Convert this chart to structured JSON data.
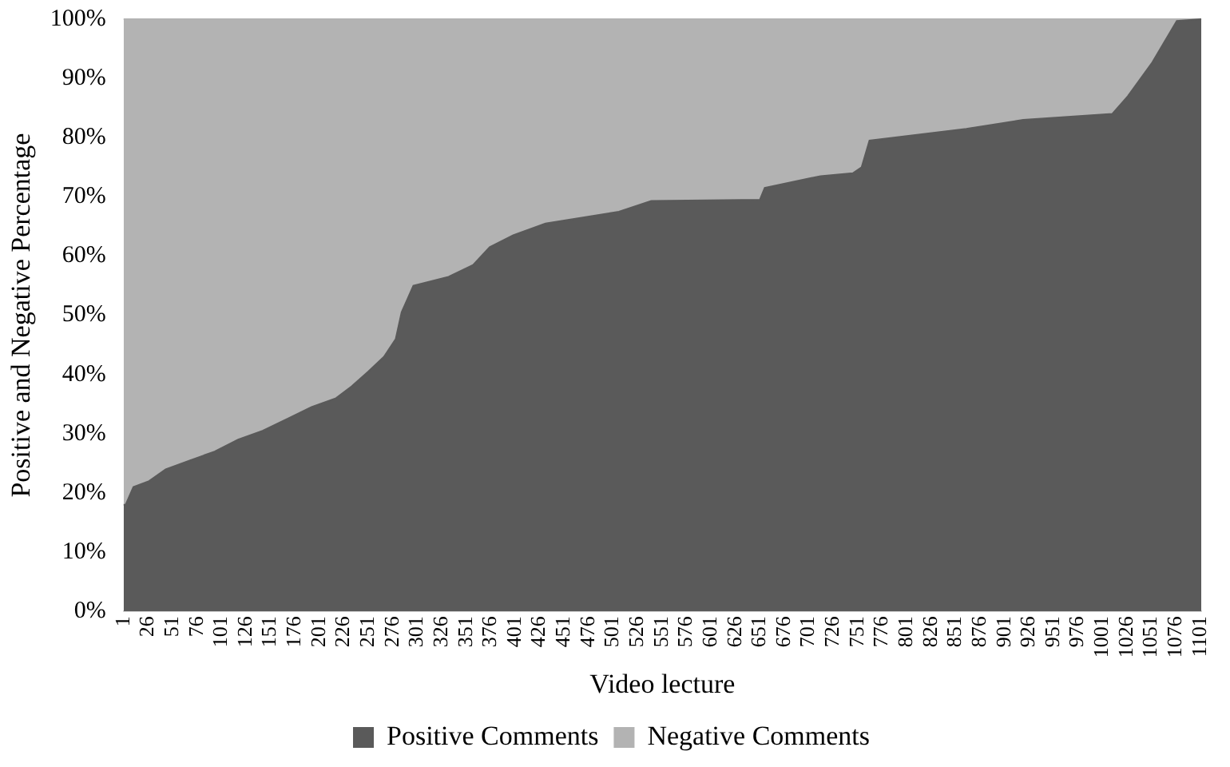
{
  "chart_data": {
    "type": "area",
    "stacked": true,
    "xlabel": "Video lecture",
    "ylabel": "Positive and Negative Percentage",
    "x": [
      1,
      3,
      11,
      27,
      44,
      69,
      94,
      118,
      143,
      168,
      193,
      218,
      234,
      251,
      267,
      279,
      285,
      297,
      333,
      358,
      375,
      399,
      432,
      507,
      540,
      651,
      656,
      713,
      746,
      755,
      763,
      862,
      920,
      1011,
      1027,
      1052,
      1077,
      1102
    ],
    "series": [
      {
        "name": "Positive Comments",
        "color": "#5a5a5a",
        "values": [
          18,
          18,
          21,
          22,
          24,
          25.5,
          27,
          29,
          30.5,
          32.5,
          34.5,
          36,
          38,
          40.5,
          43,
          46,
          50.5,
          55,
          56.5,
          58.5,
          61.5,
          63.5,
          65.5,
          67.5,
          69.3,
          69.5,
          71.5,
          73.5,
          74,
          75,
          79.5,
          81.5,
          83,
          84,
          87,
          92.7,
          99.7,
          100
        ]
      },
      {
        "name": "Negative Comments",
        "color": "#b3b3b3",
        "values": [
          82,
          82,
          79,
          78,
          76,
          74.5,
          73,
          71,
          69.5,
          67.5,
          65.5,
          64,
          62,
          59.5,
          57,
          54,
          49.5,
          45,
          43.5,
          41.5,
          38.5,
          36.5,
          34.5,
          32.5,
          30.7,
          30.5,
          28.5,
          26.5,
          26,
          25,
          20.5,
          18.5,
          17,
          16,
          13,
          7.3,
          0.3,
          0
        ]
      }
    ],
    "xlim": [
      1,
      1102
    ],
    "xticks": [
      1,
      26,
      51,
      76,
      101,
      126,
      151,
      176,
      201,
      226,
      251,
      276,
      301,
      326,
      351,
      376,
      401,
      426,
      451,
      476,
      501,
      526,
      551,
      576,
      601,
      626,
      651,
      676,
      701,
      726,
      751,
      776,
      801,
      826,
      851,
      876,
      901,
      926,
      951,
      976,
      1001,
      1026,
      1051,
      1076,
      1101
    ],
    "ylim": [
      0,
      100
    ],
    "yticks": [
      {
        "value": 0,
        "label": "0%"
      },
      {
        "value": 10,
        "label": "10%"
      },
      {
        "value": 20,
        "label": "20%"
      },
      {
        "value": 30,
        "label": "30%"
      },
      {
        "value": 40,
        "label": "40%"
      },
      {
        "value": 50,
        "label": "50%"
      },
      {
        "value": 60,
        "label": "60%"
      },
      {
        "value": 70,
        "label": "70%"
      },
      {
        "value": 80,
        "label": "80%"
      },
      {
        "value": 90,
        "label": "90%"
      },
      {
        "value": 100,
        "label": "100%"
      }
    ],
    "grid": false,
    "legend": "bottom"
  }
}
